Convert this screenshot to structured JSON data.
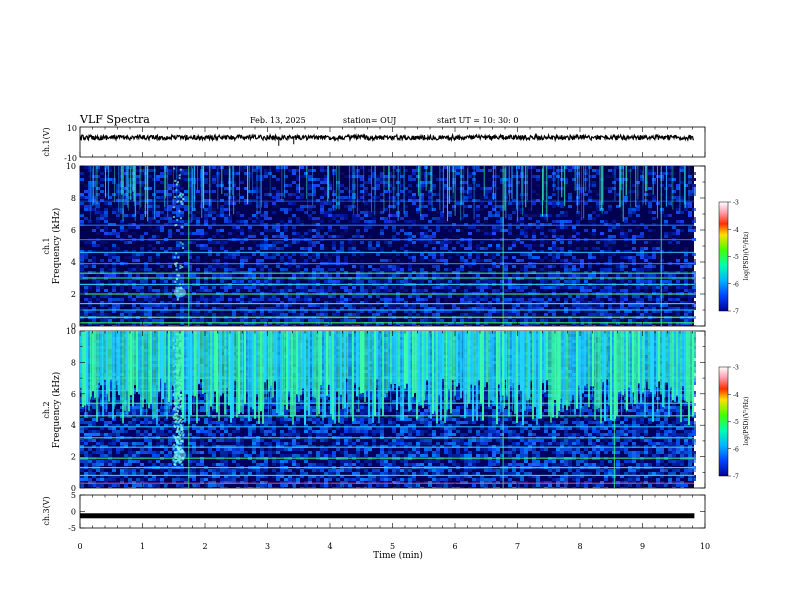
{
  "header": {
    "title": "VLF Spectra",
    "date": "Feb. 13, 2025",
    "station": "station= OUJ",
    "start": "start  UT  =   10: 30: 0"
  },
  "chart_data": [
    {
      "type": "line",
      "id": "ch1-waveform",
      "ylabel": "ch.1(V)",
      "ylim": [
        -10,
        10
      ],
      "yticks": [
        "10",
        "-10"
      ],
      "baseline": 3,
      "xlim": [
        0,
        10
      ],
      "spikes": [
        {
          "x": 3.18,
          "y": -2.5
        },
        {
          "x": 3.42,
          "y": -1.5
        },
        {
          "x": 5.9,
          "y": 1
        }
      ]
    },
    {
      "type": "heatmap",
      "id": "ch1-spectrogram",
      "ylabel_top": "ch.1",
      "ylabel": "Frequency (kHz)",
      "xlim": [
        0,
        10
      ],
      "ylim": [
        0,
        10
      ],
      "yticks": [
        "0",
        "2",
        "4",
        "6",
        "8",
        "10"
      ],
      "data_xmax": 9.83,
      "colorbar": {
        "label": "log(PSD)(V²/Hz)",
        "range": [
          -7,
          -3
        ],
        "ticks": [
          "-3",
          "-4",
          "-5",
          "-6",
          "-7"
        ]
      }
    },
    {
      "type": "heatmap",
      "id": "ch2-spectrogram",
      "ylabel_top": "ch.2",
      "ylabel": "Frequency (kHz)",
      "xlim": [
        0,
        10
      ],
      "ylim": [
        0,
        10
      ],
      "yticks": [
        "0",
        "2",
        "4",
        "6",
        "8",
        "10"
      ],
      "data_xmax": 9.83,
      "colorbar": {
        "label": "log(PSD)(V²/Hz)",
        "range": [
          -7,
          -3
        ],
        "ticks": [
          "-3",
          "-4",
          "-5",
          "-6",
          "-7"
        ]
      }
    },
    {
      "type": "line",
      "id": "ch3-waveform",
      "ylabel": "ch.3(V)",
      "ylim": [
        -5,
        5
      ],
      "yticks": [
        "5",
        "0",
        "-5"
      ],
      "baseline": -1.3,
      "xlim": [
        0,
        10
      ],
      "xlabel": "Time (min)",
      "xticks": [
        "0",
        "1",
        "2",
        "3",
        "4",
        "5",
        "6",
        "7",
        "8",
        "9",
        "10"
      ]
    }
  ],
  "colors": {
    "ch1_trace": "#000000",
    "spectrogram_background": "#000050",
    "colormap": [
      "#00009a",
      "#0044ff",
      "#00b4ff",
      "#00ffb0",
      "#44ff00",
      "#ffe000",
      "#ff3000",
      "#ff9aaa",
      "#ffffff"
    ]
  }
}
